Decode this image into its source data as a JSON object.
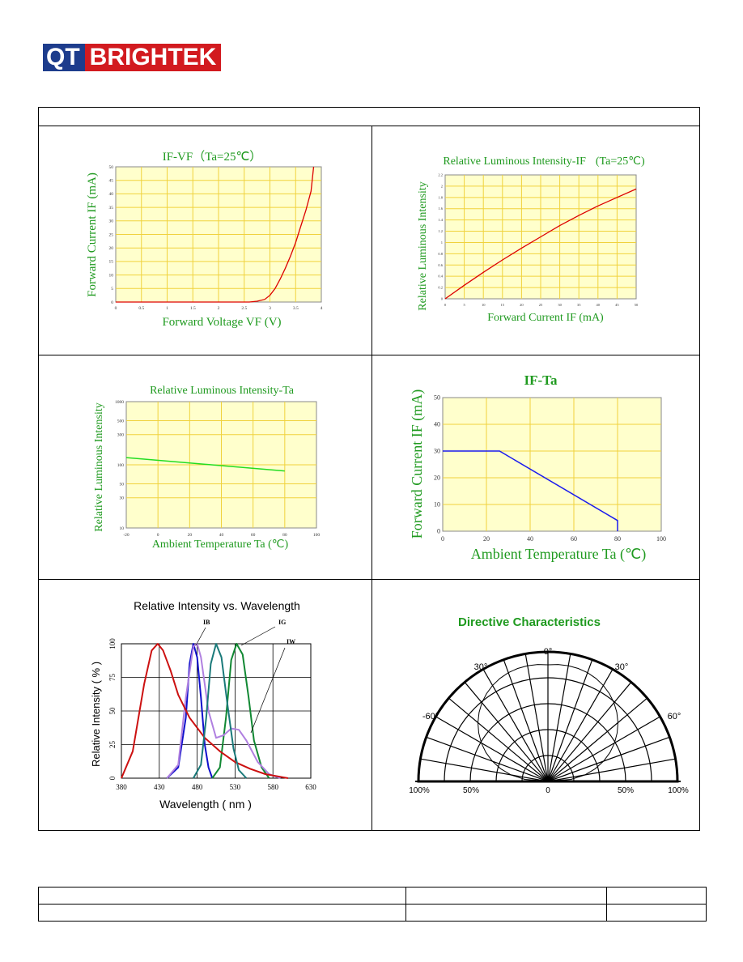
{
  "logo": {
    "left": "QT",
    "right": "BRIGHTEK"
  },
  "chart_data": [
    {
      "type": "line",
      "title": "IF-VF（Ta=25℃）",
      "xlabel": "Forward Voltage VF (V)",
      "ylabel": "Forward Current IF (mA)",
      "xlim": [
        0,
        4
      ],
      "ylim": [
        0,
        50
      ],
      "x_ticks": [
        "0",
        "0.5",
        "1",
        "1.5",
        "2",
        "2.5",
        "3",
        "3.5",
        "4"
      ],
      "y_ticks": [
        "0",
        "5",
        "10",
        "15",
        "20",
        "25",
        "30",
        "35",
        "40",
        "45",
        "50"
      ],
      "series": [
        {
          "x": [
            0,
            2.6,
            2.75,
            2.9,
            3.0,
            3.1,
            3.2,
            3.3,
            3.4,
            3.5,
            3.6,
            3.7,
            3.8,
            3.85
          ],
          "y": [
            0,
            0,
            0.3,
            1.0,
            2.5,
            5,
            8.5,
            12.5,
            17,
            22,
            28,
            34,
            41,
            50
          ]
        }
      ],
      "color": "#dd0000",
      "grid": true
    },
    {
      "type": "line",
      "title": "Relative Luminous Intensity-IF",
      "title_note": "(Ta=25℃)",
      "xlabel": "Forward Current IF (mA)",
      "ylabel": "Relative Luminous Intensity",
      "xlim": [
        0,
        30
      ],
      "ylim": [
        0,
        2.2
      ],
      "x_ticks": [
        "0",
        "5",
        "10",
        "15",
        "20",
        "25",
        "30",
        "35",
        "40",
        "45",
        "50"
      ],
      "y_ticks": [
        "0",
        "0.2",
        "0.4",
        "0.6",
        "0.8",
        "1",
        "1.2",
        "1.4",
        "1.6",
        "1.8",
        "2",
        "2.2"
      ],
      "series": [
        {
          "x": [
            0,
            3,
            6,
            9,
            12,
            15,
            18,
            21,
            24,
            27,
            30
          ],
          "y": [
            0,
            0.24,
            0.47,
            0.69,
            0.9,
            1.1,
            1.3,
            1.48,
            1.65,
            1.8,
            1.95
          ]
        }
      ],
      "color": "#dd0000",
      "grid": true
    },
    {
      "type": "line",
      "title": "Relative Luminous Intensity-Ta",
      "xlabel": "Ambient Temperature Ta (℃)",
      "ylabel": "Relative Luminous Intensity",
      "xlim": [
        -20,
        100
      ],
      "ylim": [
        10,
        1000
      ],
      "yscale": "log",
      "x_ticks": [
        "-20",
        "0",
        "20",
        "40",
        "60",
        "80",
        "100"
      ],
      "y_ticks": [
        "1000",
        "500",
        "300",
        "100",
        "50",
        "30",
        "10"
      ],
      "series": [
        {
          "x": [
            -20,
            80
          ],
          "y": [
            130,
            80
          ]
        }
      ],
      "color": "#22dd22",
      "grid": true
    },
    {
      "type": "line",
      "title": "IF-Ta",
      "xlabel": "Ambient Temperature Ta (℃)",
      "ylabel": "Forward Current IF (mA)",
      "xlim": [
        0,
        100
      ],
      "ylim": [
        0,
        50
      ],
      "x_ticks": [
        "0",
        "20",
        "40",
        "60",
        "80",
        "100"
      ],
      "y_ticks": [
        "0",
        "10",
        "20",
        "30",
        "40",
        "50"
      ],
      "series": [
        {
          "x": [
            0,
            26,
            80,
            80
          ],
          "y": [
            30,
            30,
            4,
            0
          ]
        }
      ],
      "color": "#1a1aee",
      "grid": true
    },
    {
      "type": "line",
      "title": "Relative Intensity vs. Wavelength",
      "xlabel": "Wavelength ( nm )",
      "ylabel": "Relative Intensity ( % )",
      "xlim": [
        380,
        630
      ],
      "ylim": [
        0,
        100
      ],
      "x_ticks": [
        "380",
        "430",
        "480",
        "530",
        "580",
        "630"
      ],
      "y_ticks": [
        "0",
        "25",
        "50",
        "75",
        "100"
      ],
      "series": [
        {
          "name": "IB",
          "color": "#1010cc",
          "x": [
            440,
            455,
            465,
            470,
            475,
            480,
            485,
            490,
            495,
            500
          ],
          "y": [
            0,
            8,
            45,
            85,
            100,
            90,
            60,
            25,
            8,
            0
          ]
        },
        {
          "name": "IG",
          "color": "#118833",
          "x": [
            500,
            510,
            518,
            525,
            532,
            540,
            548,
            555,
            565,
            575
          ],
          "y": [
            0,
            8,
            45,
            88,
            100,
            92,
            60,
            28,
            8,
            0
          ]
        },
        {
          "name": "IW",
          "color": "#b080e0",
          "x": [
            440,
            455,
            465,
            475,
            480,
            485,
            495,
            505,
            515,
            525,
            535,
            545,
            560,
            575,
            590
          ],
          "y": [
            0,
            10,
            60,
            98,
            100,
            90,
            50,
            30,
            32,
            37,
            36,
            28,
            12,
            3,
            0
          ]
        },
        {
          "name": "",
          "color": "#cc1111",
          "x": [
            380,
            395,
            410,
            420,
            428,
            435,
            445,
            455,
            470,
            490,
            510,
            530,
            550,
            570,
            590,
            600
          ],
          "y": [
            0,
            20,
            70,
            95,
            100,
            95,
            80,
            62,
            45,
            30,
            20,
            12,
            7,
            3,
            1,
            0
          ]
        },
        {
          "name": "",
          "color": "#1a7a7a",
          "x": [
            475,
            485,
            492,
            498,
            505,
            512,
            520,
            528,
            535,
            545
          ],
          "y": [
            0,
            10,
            45,
            85,
            100,
            90,
            55,
            22,
            6,
            0
          ]
        }
      ],
      "grid": true
    },
    {
      "type": "polar",
      "title": "Directive Characteristics",
      "angle_labels": [
        "0°",
        "30°",
        "30°",
        "-60°",
        "60°"
      ],
      "radial_labels": [
        "100%",
        "50%",
        "0",
        "50%",
        "100%"
      ]
    }
  ]
}
